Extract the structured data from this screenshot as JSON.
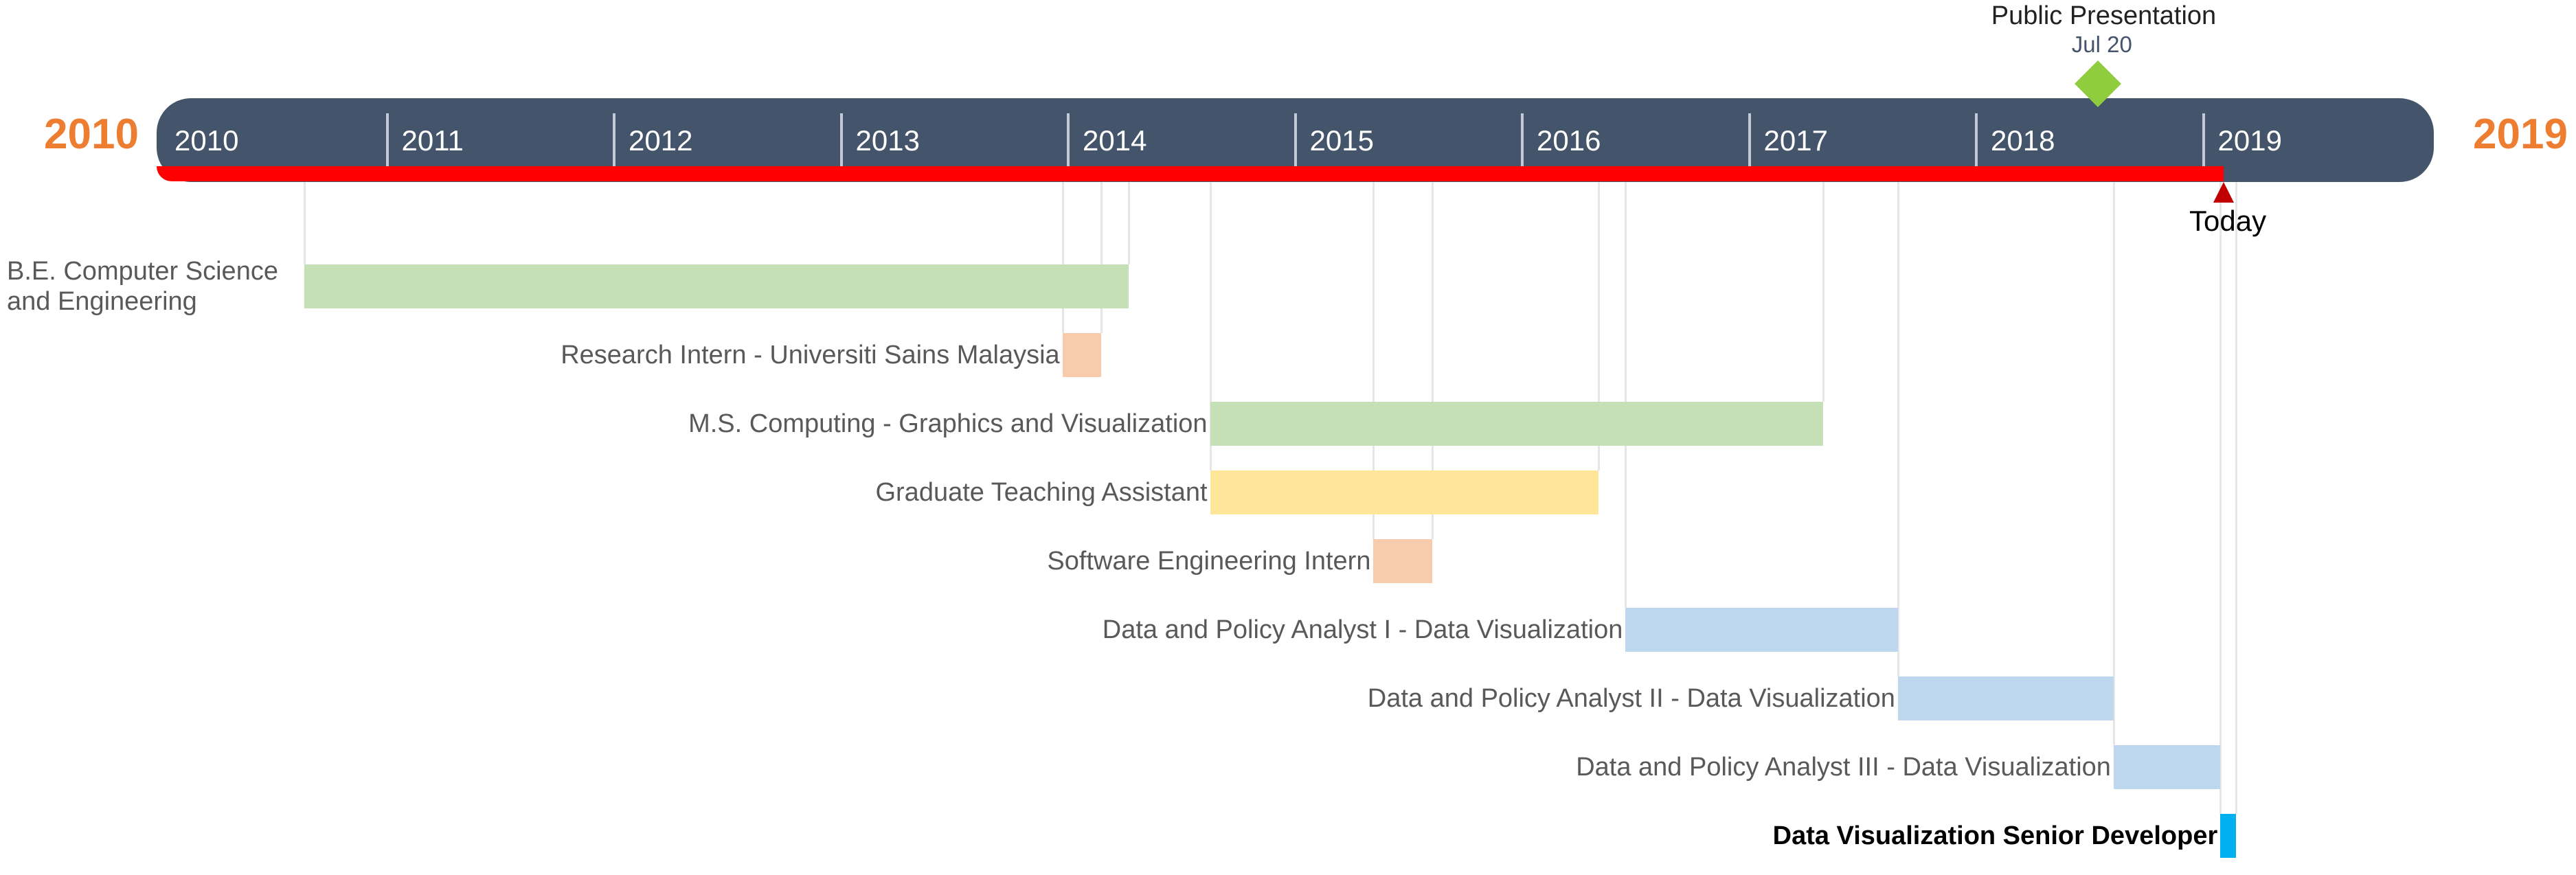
{
  "timeline": {
    "start_year": "2010",
    "end_year": "2019",
    "ticks": [
      "2010",
      "2011",
      "2012",
      "2013",
      "2014",
      "2015",
      "2016",
      "2017",
      "2018",
      "2019"
    ],
    "today_label": "Today",
    "today_year": 2019.05,
    "colors": {
      "bar": "#44546a",
      "progress": "#ff0000",
      "year_label": "#ed7d31"
    }
  },
  "milestone": {
    "title": "Public Presentation",
    "date": "Jul 20",
    "year": 2018.55,
    "color": "#8fcd3f"
  },
  "tasks": [
    {
      "label": "B.E. Computer Science and Engineering",
      "start": 2010.65,
      "end": 2014.28,
      "color": "#c5e0b4"
    },
    {
      "label": "Research Intern - Universiti Sains Malaysia",
      "start": 2013.99,
      "end": 2014.16,
      "color": "#f8cbad"
    },
    {
      "label": "M.S. Computing - Graphics and Visualization",
      "start": 2014.64,
      "end": 2017.34,
      "color": "#c5e0b4"
    },
    {
      "label": "Graduate Teaching Assistant",
      "start": 2014.64,
      "end": 2016.35,
      "color": "#ffe699"
    },
    {
      "label": "Software Engineering Intern",
      "start": 2015.36,
      "end": 2015.62,
      "color": "#f8cbad"
    },
    {
      "label": "Data and Policy Analyst I - Data Visualization",
      "start": 2016.47,
      "end": 2017.67,
      "color": "#bdd7ee"
    },
    {
      "label": "Data and Policy Analyst II - Data Visualization",
      "start": 2017.67,
      "end": 2018.62,
      "color": "#bdd7ee"
    },
    {
      "label": "Data and Policy Analyst III - Data Visualization",
      "start": 2018.62,
      "end": 2019.09,
      "color": "#bdd7ee"
    },
    {
      "label": "Data Visualization Senior Developer",
      "start": 2019.09,
      "end": 2019.16,
      "color": "#00b0f0",
      "bold": true
    }
  ]
}
